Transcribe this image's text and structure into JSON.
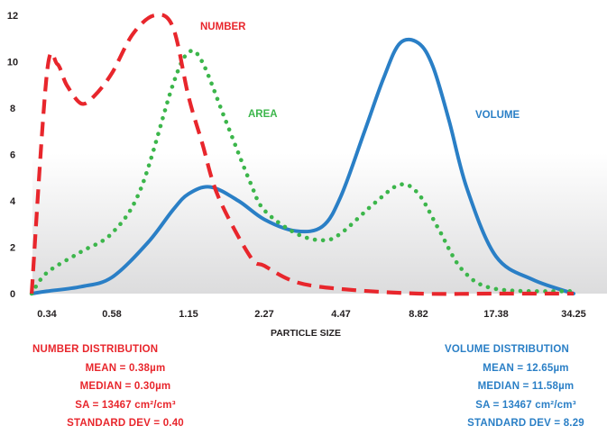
{
  "colors": {
    "number": "#e8262c",
    "area": "#3cb64b",
    "volume": "#2a7fc6",
    "axis_text": "#231f20"
  },
  "chart_data": {
    "type": "line",
    "title": "",
    "xlabel": "PARTICLE SIZE",
    "ylabel": "",
    "x_tick_labels": [
      "0.34",
      "0.58",
      "1.15",
      "2.27",
      "4.47",
      "8.82",
      "17.38",
      "34.25"
    ],
    "y_ticks": [
      0,
      2,
      4,
      6,
      8,
      10,
      12
    ],
    "ylim": [
      0,
      12.5
    ],
    "grid": false,
    "series": [
      {
        "name": "NUMBER",
        "style": "dashed",
        "x": [
          0.3,
          0.34,
          0.37,
          0.4,
          0.45,
          0.5,
          0.58,
          0.7,
          0.85,
          1.0,
          1.15,
          1.3,
          1.5,
          2.0,
          2.27,
          3.0,
          4.47,
          8.82,
          17.38,
          34.25
        ],
        "y": [
          0,
          9.5,
          9.9,
          9.0,
          8.2,
          8.5,
          9.5,
          11.2,
          12.0,
          11.5,
          8.5,
          6.5,
          4.2,
          1.6,
          1.2,
          0.5,
          0.2,
          0.0,
          0.0,
          0.0
        ]
      },
      {
        "name": "AREA",
        "style": "dotted",
        "x": [
          0.3,
          0.34,
          0.45,
          0.58,
          0.75,
          1.0,
          1.15,
          1.3,
          1.6,
          2.0,
          2.27,
          3.0,
          3.8,
          4.47,
          6.0,
          7.5,
          8.82,
          10.5,
          13.0,
          17.38,
          34.25
        ],
        "y": [
          0,
          0.9,
          1.8,
          2.6,
          4.5,
          9.0,
          10.4,
          10.0,
          7.5,
          4.8,
          3.6,
          2.6,
          2.3,
          2.6,
          3.9,
          4.7,
          4.3,
          2.8,
          1.0,
          0.2,
          0.1
        ]
      },
      {
        "name": "VOLUME",
        "style": "solid",
        "x": [
          0.3,
          0.34,
          0.45,
          0.58,
          0.8,
          1.0,
          1.15,
          1.4,
          1.8,
          2.27,
          3.0,
          3.8,
          4.47,
          5.5,
          6.5,
          7.5,
          8.82,
          10.0,
          11.5,
          13.5,
          17.38,
          24.0,
          34.25
        ],
        "y": [
          0,
          0.1,
          0.3,
          0.7,
          2.2,
          3.6,
          4.3,
          4.6,
          4.0,
          3.2,
          2.7,
          2.9,
          4.2,
          7.0,
          9.3,
          10.8,
          10.8,
          9.8,
          7.5,
          4.5,
          1.6,
          0.6,
          0.0
        ]
      }
    ],
    "annotations": [
      {
        "text": "NUMBER",
        "series": "NUMBER"
      },
      {
        "text": "AREA",
        "series": "AREA"
      },
      {
        "text": "VOLUME",
        "series": "VOLUME"
      }
    ]
  },
  "stats": {
    "number": {
      "title": "NUMBER DISTRIBUTION",
      "mean": "MEAN = 0.38µm",
      "median": "MEDIAN = 0.30µm",
      "sa": "SA = 13467 cm²/cm³",
      "std": "STANDARD DEV = 0.40"
    },
    "volume": {
      "title": "VOLUME DISTRIBUTION",
      "mean": "MEAN = 12.65µm",
      "median": "MEDIAN = 11.58µm",
      "sa": "SA = 13467 cm²/cm³",
      "std": "STANDARD DEV = 8.29"
    }
  }
}
